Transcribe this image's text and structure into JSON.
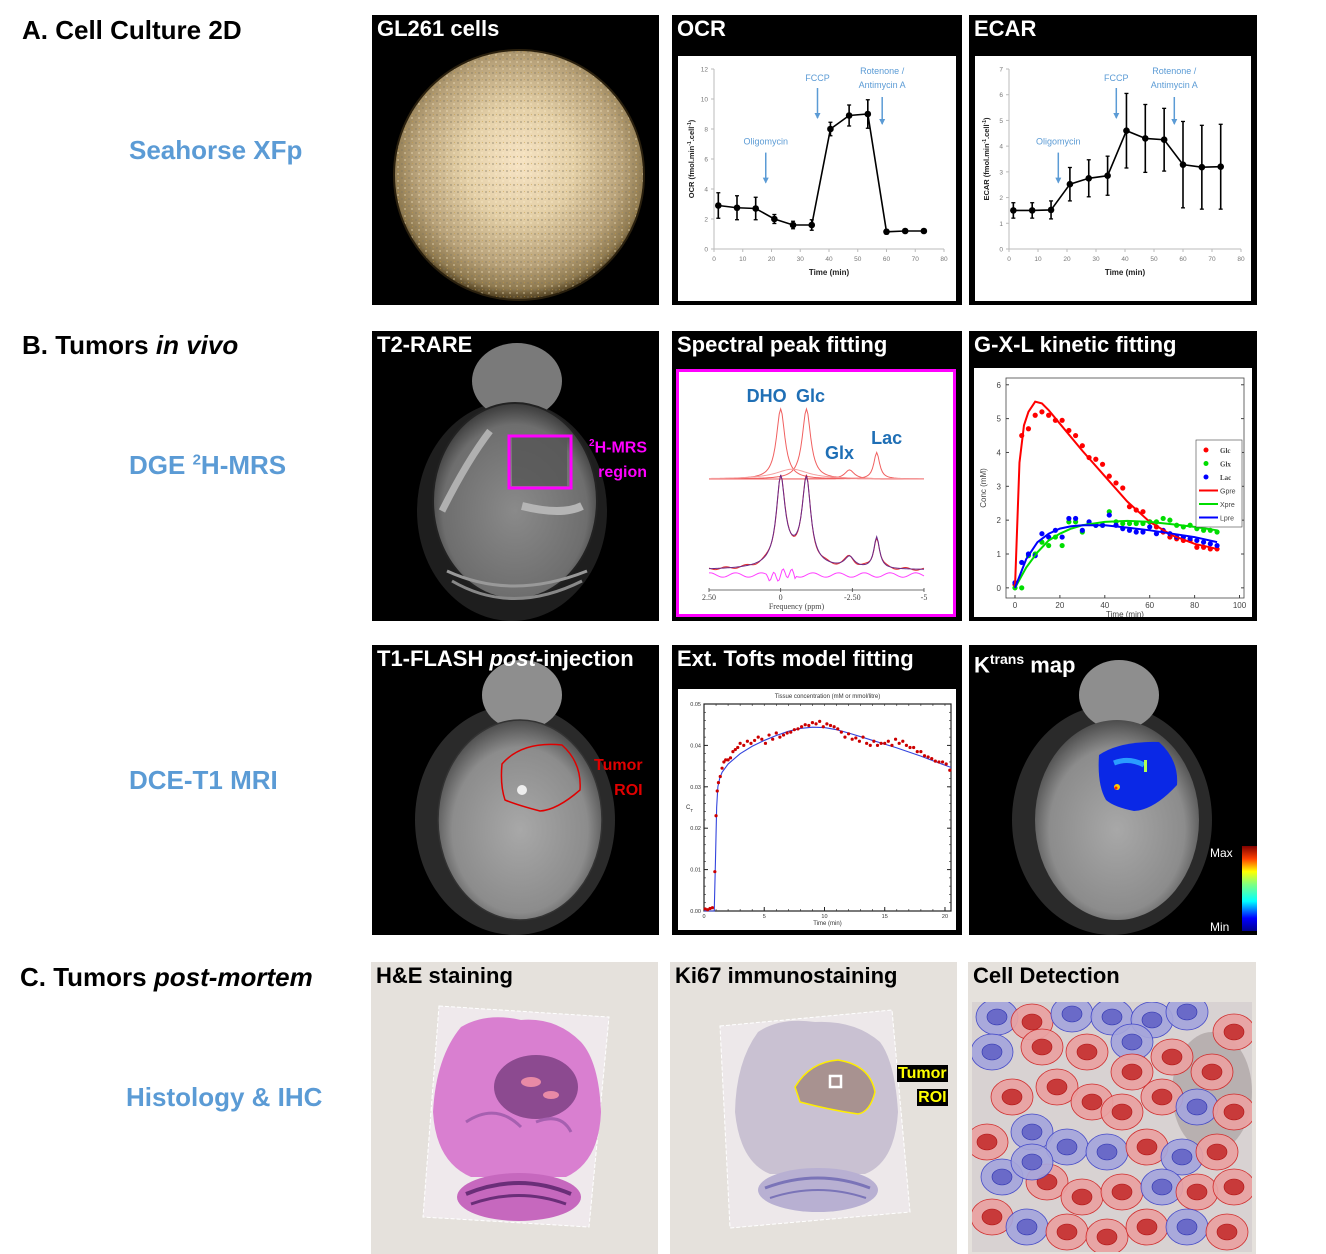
{
  "sections": [
    {
      "label": "A. Cell Culture 2D",
      "label_main": "A. Cell Culture 2D",
      "label_italic": ""
    },
    {
      "label": "B. Tumors in vivo",
      "label_main": "B. Tumors ",
      "label_italic": "in vivo"
    },
    {
      "label": "C. Tumors post-mortem",
      "label_main": "C. Tumors ",
      "label_italic": "post-mortem"
    }
  ],
  "techniques": {
    "seahorse": "Seahorse XFp",
    "dge_prefix": "DGE ",
    "dge_sup": "2",
    "dge_suffix": "H-MRS",
    "dce": "DCE-T1 MRI",
    "histology": "Histology & IHC"
  },
  "panels": {
    "gl261": {
      "title": "GL261 cells"
    },
    "ocr": {
      "title": "OCR"
    },
    "ecar": {
      "title": "ECAR"
    },
    "t2rare": {
      "title": "T2-RARE",
      "roi_sup": "2",
      "roi_line1": "H-MRS",
      "roi_line2": "region"
    },
    "spectral": {
      "title": "Spectral peak fitting"
    },
    "gxl": {
      "title": "G-X-L kinetic fitting"
    },
    "t1flash": {
      "title_main": "T1-FLASH ",
      "title_italic": "post",
      "title_suffix": "-injection",
      "roi_line1": "Tumor",
      "roi_line2": "ROI"
    },
    "tofts": {
      "title": "Ext. Tofts model fitting"
    },
    "ktrans": {
      "title_main": "K",
      "title_sup": "trans",
      "title_suffix": " map",
      "colorbar_max": "Max",
      "colorbar_min": "Min"
    },
    "he": {
      "title": "H&E staining"
    },
    "ki67": {
      "title": "Ki67 immunostaining",
      "roi_line1": "Tumor",
      "roi_line2": "ROI"
    },
    "celldet": {
      "title": "Cell Detection"
    }
  },
  "colors": {
    "technique_blue": "#5b9bd5",
    "magenta": "#ff00ff",
    "roi_red": "#e00000",
    "roi_yellow": "#ffff00",
    "annotation_blue": "#5b9bd5"
  },
  "chart_data": [
    {
      "id": "ocr",
      "type": "line",
      "title": "OCR",
      "xlabel": "Time (min)",
      "ylabel": "OCR (fmol.min-1.cell-1)",
      "ylabel_main": "OCR (fmol.min",
      "ylabel_sup1": "-1",
      "ylabel_mid": ".cell",
      "ylabel_sup2": "-1",
      "ylabel_end": ")",
      "xlim": [
        0,
        80
      ],
      "ylim": [
        0,
        12
      ],
      "xticks": [
        0,
        10,
        20,
        30,
        40,
        50,
        60,
        70,
        80
      ],
      "yticks": [
        0,
        2,
        4,
        6,
        8,
        10,
        12
      ],
      "x": [
        1.5,
        8,
        14.5,
        21,
        27.5,
        34,
        40.5,
        47,
        53.5,
        60,
        66.5,
        73
      ],
      "y": [
        2.9,
        2.75,
        2.7,
        2.0,
        1.6,
        1.6,
        8.0,
        8.9,
        9.0,
        1.15,
        1.2,
        1.2
      ],
      "yerr": [
        0.85,
        0.8,
        0.75,
        0.3,
        0.25,
        0.35,
        0.45,
        0.7,
        0.95,
        0.15,
        0.1,
        0.1
      ],
      "annotations": [
        {
          "text": "Oligomycin",
          "x": 18
        },
        {
          "text": "FCCP",
          "x": 36
        },
        {
          "text": "Rotenone /",
          "text2": "Antimycin A",
          "x": 58.5
        }
      ]
    },
    {
      "id": "ecar",
      "type": "line",
      "title": "ECAR",
      "xlabel": "Time (min)",
      "ylabel": "ECAR (fmol.min-1.cell-1)",
      "ylabel_main": "ECAR (fmol.min",
      "ylabel_sup1": "-1",
      "ylabel_mid": ".cell",
      "ylabel_sup2": "-1",
      "ylabel_end": ")",
      "xlim": [
        0,
        80
      ],
      "ylim": [
        0,
        7
      ],
      "xticks": [
        0,
        10,
        20,
        30,
        40,
        50,
        60,
        70,
        80
      ],
      "yticks": [
        0,
        1,
        2,
        3,
        4,
        5,
        6,
        7
      ],
      "x": [
        1.5,
        8,
        14.5,
        21,
        27.5,
        34,
        40.5,
        47,
        53.5,
        60,
        66.5,
        73
      ],
      "y": [
        1.5,
        1.5,
        1.52,
        2.52,
        2.75,
        2.85,
        4.6,
        4.3,
        4.25,
        3.28,
        3.18,
        3.2
      ],
      "yerr": [
        0.3,
        0.3,
        0.35,
        0.65,
        0.72,
        0.76,
        1.45,
        1.32,
        1.22,
        1.68,
        1.63,
        1.65
      ],
      "annotations": [
        {
          "text": "Oligomycin",
          "x": 17
        },
        {
          "text": "FCCP",
          "x": 37
        },
        {
          "text": "Rotenone /",
          "text2": "Antimycin A",
          "x": 57
        }
      ]
    },
    {
      "id": "spectral",
      "type": "line",
      "title": "Spectral peak fitting",
      "xlabel": "Frequency (ppm)",
      "xlim": [
        2.5,
        -5
      ],
      "xticks": [
        2.5,
        0,
        -2.5,
        -5
      ],
      "xtick_labels": [
        "2.50",
        "0",
        "-2.50",
        "-5"
      ],
      "peaks": [
        {
          "name": "DHO",
          "ppm": 0.0,
          "height": 1.0
        },
        {
          "name": "Glc",
          "ppm": -0.9,
          "height": 1.0
        },
        {
          "name": "Glx",
          "ppm": -2.4,
          "height": 0.13
        },
        {
          "name": "Lac",
          "ppm": -3.35,
          "height": 0.38
        }
      ],
      "peak_labels": [
        "DHO",
        "Glc",
        "Glx",
        "Lac"
      ]
    },
    {
      "id": "gxl",
      "type": "scatter",
      "title": "G-X-L kinetic fitting",
      "xlabel": "Time (min)",
      "ylabel": "Conc (mM)",
      "xlim": [
        -4,
        102
      ],
      "ylim": [
        -0.3,
        6.2
      ],
      "xticks": [
        0,
        20,
        40,
        60,
        80,
        100
      ],
      "yticks": [
        0,
        1,
        2,
        3,
        4,
        5,
        6
      ],
      "legend": [
        "Glc",
        "Glx",
        "Lac",
        "Gpre",
        "Xpre",
        "Lpre"
      ],
      "legend_position": "top-right",
      "series": [
        {
          "name": "Glc",
          "color": "#ff0000",
          "x": [
            0,
            3,
            6,
            9,
            12,
            15,
            18,
            21,
            24,
            27,
            30,
            33,
            36,
            39,
            42,
            45,
            48,
            51,
            54,
            57,
            60,
            63,
            66,
            69,
            72,
            75,
            78,
            81,
            84,
            87,
            90
          ],
          "y": [
            0.1,
            4.5,
            4.7,
            5.1,
            5.2,
            5.1,
            4.95,
            4.95,
            4.65,
            4.5,
            4.2,
            3.85,
            3.8,
            3.65,
            3.3,
            3.1,
            2.95,
            2.4,
            2.3,
            2.25,
            1.95,
            1.8,
            1.65,
            1.5,
            1.45,
            1.4,
            1.4,
            1.2,
            1.2,
            1.15,
            1.15
          ]
        },
        {
          "name": "Glx",
          "color": "#00dd00",
          "x": [
            0,
            3,
            6,
            9,
            12,
            15,
            18,
            21,
            24,
            27,
            30,
            33,
            36,
            39,
            42,
            45,
            48,
            51,
            54,
            57,
            60,
            63,
            66,
            69,
            72,
            75,
            78,
            81,
            84,
            87,
            90
          ],
          "y": [
            0.0,
            0.0,
            0.95,
            1.0,
            1.35,
            1.25,
            1.5,
            1.25,
            1.95,
            1.95,
            1.65,
            1.9,
            1.85,
            1.85,
            2.25,
            1.95,
            1.9,
            1.9,
            1.9,
            1.9,
            1.95,
            1.95,
            2.05,
            2.0,
            1.85,
            1.8,
            1.85,
            1.75,
            1.7,
            1.7,
            1.65
          ]
        },
        {
          "name": "Lac",
          "color": "#0000ff",
          "x": [
            0,
            3,
            6,
            9,
            12,
            15,
            18,
            21,
            24,
            27,
            30,
            33,
            36,
            39,
            42,
            45,
            48,
            51,
            54,
            57,
            60,
            63,
            66,
            69,
            72,
            75,
            78,
            81,
            84,
            87,
            90
          ],
          "y": [
            0.15,
            0.75,
            1.0,
            0.95,
            1.6,
            1.5,
            1.7,
            1.5,
            2.05,
            2.05,
            1.7,
            1.95,
            1.85,
            1.85,
            2.15,
            1.85,
            1.75,
            1.7,
            1.65,
            1.65,
            1.8,
            1.6,
            1.7,
            1.6,
            1.5,
            1.5,
            1.45,
            1.4,
            1.35,
            1.3,
            1.25
          ]
        },
        {
          "name": "Gpre",
          "color": "#ff0000",
          "fit": true,
          "x": [
            0,
            2,
            4,
            6,
            9,
            12,
            15,
            20,
            30,
            40,
            50,
            60,
            70,
            80,
            90
          ],
          "y": [
            0,
            3.7,
            4.8,
            5.2,
            5.5,
            5.45,
            5.25,
            4.85,
            4.05,
            3.3,
            2.55,
            1.95,
            1.55,
            1.3,
            1.15
          ]
        },
        {
          "name": "Xpre",
          "color": "#00dd00",
          "fit": true,
          "x": [
            0,
            5,
            10,
            15,
            20,
            25,
            30,
            40,
            50,
            60,
            70,
            80,
            90
          ],
          "y": [
            0.0,
            0.6,
            1.05,
            1.4,
            1.6,
            1.75,
            1.85,
            1.95,
            1.98,
            1.95,
            1.88,
            1.8,
            1.7
          ]
        },
        {
          "name": "Lpre",
          "color": "#0000ff",
          "fit": true,
          "x": [
            0,
            5,
            10,
            15,
            20,
            25,
            30,
            40,
            50,
            60,
            70,
            80,
            90
          ],
          "y": [
            0.0,
            0.85,
            1.35,
            1.6,
            1.75,
            1.82,
            1.85,
            1.85,
            1.78,
            1.7,
            1.6,
            1.5,
            1.35
          ]
        }
      ]
    },
    {
      "id": "tofts",
      "type": "scatter",
      "title": "Ext. Tofts model fitting",
      "chart_title": "Tissue concentration (mM or mmol/litre)",
      "xlabel": "Time (min)",
      "ylabel": "C_T",
      "ylabel_main": "C",
      "ylabel_sub": "T",
      "xlim": [
        0,
        20.5
      ],
      "ylim": [
        0,
        0.05
      ],
      "xticks": [
        0,
        5,
        10,
        15,
        20
      ],
      "yticks": [
        0.0,
        0.01,
        0.02,
        0.03,
        0.04,
        0.05
      ],
      "ytick_labels": [
        "0.00",
        "0.01",
        "0.02",
        "0.03",
        "0.04",
        "0.05"
      ],
      "series": [
        {
          "name": "data",
          "color": "#cc0000",
          "x": [
            0.1,
            0.3,
            0.5,
            0.7,
            0.9,
            1.0,
            1.1,
            1.2,
            1.35,
            1.5,
            1.65,
            1.8,
            2.0,
            2.2,
            2.4,
            2.6,
            2.8,
            3.0,
            3.3,
            3.6,
            3.9,
            4.2,
            4.5,
            4.8,
            5.1,
            5.4,
            5.7,
            6.0,
            6.3,
            6.6,
            6.9,
            7.2,
            7.5,
            7.8,
            8.1,
            8.4,
            8.7,
            9.0,
            9.3,
            9.6,
            9.9,
            10.2,
            10.5,
            10.8,
            11.1,
            11.4,
            11.7,
            12.0,
            12.3,
            12.6,
            12.9,
            13.2,
            13.5,
            13.8,
            14.1,
            14.4,
            14.7,
            15.0,
            15.3,
            15.6,
            15.9,
            16.2,
            16.5,
            16.8,
            17.1,
            17.4,
            17.7,
            18.0,
            18.3,
            18.6,
            18.9,
            19.2,
            19.5,
            19.8,
            20.1,
            20.4
          ],
          "y": [
            0.0005,
            0.0003,
            0.0006,
            0.0008,
            0.0095,
            0.023,
            0.029,
            0.031,
            0.0325,
            0.0345,
            0.036,
            0.0365,
            0.0365,
            0.037,
            0.0385,
            0.039,
            0.0395,
            0.0405,
            0.04,
            0.041,
            0.0405,
            0.0412,
            0.042,
            0.0415,
            0.0405,
            0.0425,
            0.0415,
            0.043,
            0.042,
            0.0425,
            0.043,
            0.0432,
            0.0438,
            0.044,
            0.0445,
            0.045,
            0.0448,
            0.0455,
            0.0452,
            0.0458,
            0.0445,
            0.0452,
            0.0448,
            0.0445,
            0.044,
            0.0432,
            0.042,
            0.0428,
            0.0415,
            0.0418,
            0.041,
            0.042,
            0.0405,
            0.04,
            0.041,
            0.04,
            0.0405,
            0.0405,
            0.041,
            0.04,
            0.0415,
            0.0405,
            0.041,
            0.04,
            0.0395,
            0.0395,
            0.0385,
            0.0385,
            0.0375,
            0.0372,
            0.0368,
            0.0362,
            0.036,
            0.036,
            0.0355,
            0.034
          ]
        },
        {
          "name": "fit",
          "color": "#3344dd",
          "fit": true,
          "x": [
            0,
            0.85,
            0.95,
            1.05,
            1.15,
            1.3,
            1.5,
            2,
            3,
            4,
            5,
            6,
            7,
            8,
            9,
            10,
            11,
            12,
            13,
            14,
            15,
            16,
            17,
            18,
            19,
            20,
            20.5
          ],
          "y": [
            0,
            0,
            0.012,
            0.025,
            0.03,
            0.032,
            0.0335,
            0.0355,
            0.038,
            0.0398,
            0.0412,
            0.0424,
            0.0434,
            0.0441,
            0.0444,
            0.0443,
            0.0438,
            0.043,
            0.0421,
            0.0412,
            0.0403,
            0.0394,
            0.0384,
            0.0374,
            0.0363,
            0.0352,
            0.0347
          ]
        }
      ]
    }
  ]
}
